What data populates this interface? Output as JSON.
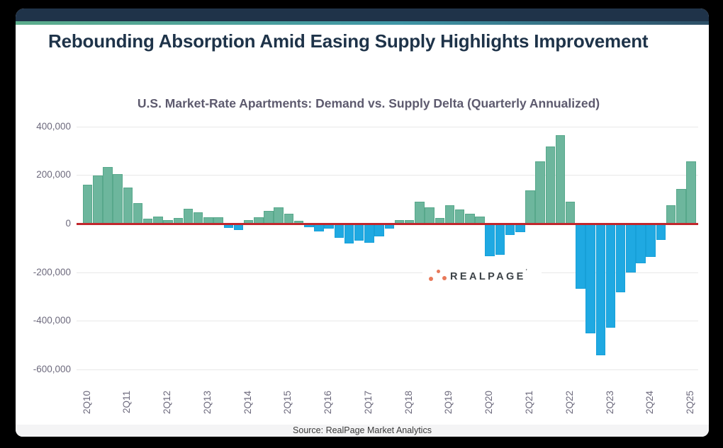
{
  "title": "Rebounding Absorption Amid Easing Supply Highlights Improvement",
  "chart_data": {
    "type": "bar",
    "title": "U.S. Market-Rate Apartments: Demand vs. Supply Delta (Quarterly Annualized)",
    "categories": [
      "2Q10",
      "3Q10",
      "4Q10",
      "1Q11",
      "2Q11",
      "3Q11",
      "4Q11",
      "1Q12",
      "2Q12",
      "3Q12",
      "4Q12",
      "1Q13",
      "2Q13",
      "3Q13",
      "4Q13",
      "1Q14",
      "2Q14",
      "3Q14",
      "4Q14",
      "1Q15",
      "2Q15",
      "3Q15",
      "4Q15",
      "1Q16",
      "2Q16",
      "3Q16",
      "4Q16",
      "1Q17",
      "2Q17",
      "3Q17",
      "4Q17",
      "1Q18",
      "2Q18",
      "3Q18",
      "4Q18",
      "1Q19",
      "2Q19",
      "3Q19",
      "4Q19",
      "1Q20",
      "2Q20",
      "3Q20",
      "4Q20",
      "1Q21",
      "2Q21",
      "3Q21",
      "4Q21",
      "1Q22",
      "2Q22",
      "3Q22",
      "4Q22",
      "1Q23",
      "2Q23",
      "3Q23",
      "4Q23",
      "1Q24",
      "2Q24",
      "3Q24",
      "4Q24",
      "1Q25",
      "2Q25"
    ],
    "values": [
      160000,
      197000,
      233000,
      203000,
      148000,
      86000,
      20000,
      29000,
      16000,
      24000,
      60000,
      47000,
      26000,
      26000,
      -13000,
      -22000,
      15000,
      27000,
      54000,
      68000,
      40000,
      13000,
      -12000,
      -28000,
      -17000,
      -56000,
      -79000,
      -68000,
      -75000,
      -48000,
      -17000,
      15000,
      15000,
      90000,
      68000,
      23000,
      75000,
      58000,
      40000,
      28000,
      -130000,
      -126000,
      -43000,
      -31000,
      138000,
      257000,
      317000,
      363000,
      90000,
      -265000,
      -448000,
      -538000,
      -425000,
      -280000,
      -199000,
      -161000,
      -135000,
      -65000,
      77000,
      144000,
      256000
    ],
    "x_tick_labels": [
      "2Q10",
      "2Q11",
      "2Q12",
      "2Q13",
      "2Q14",
      "2Q15",
      "2Q16",
      "2Q17",
      "2Q18",
      "2Q19",
      "2Q20",
      "2Q21",
      "2Q22",
      "2Q23",
      "2Q24",
      "2Q25"
    ],
    "x_label_every": 4,
    "y_ticks": [
      400000,
      200000,
      -200000,
      -400000,
      -600000
    ],
    "y_tick_labels": [
      "400,000",
      "200,000",
      "0",
      "-200,000",
      "-400,000",
      "-600,000"
    ],
    "y_tick_values": [
      400000,
      200000,
      0,
      -200000,
      -400000,
      -600000
    ],
    "ylim": [
      -600000,
      400000
    ],
    "grid": true,
    "legend": false,
    "positive_color": "#6db69d",
    "positive_border_color": "#57a88b",
    "negative_color": "#1fa9e2",
    "negative_border_color": "#17a0d8",
    "zero_line_color": "#c1272d",
    "gridline_color": "#e8e8e8",
    "tick_label_color": "#6d6a7d"
  },
  "header": {
    "bar_color": "#1f3349",
    "accent_colors": [
      "#5cad8c",
      "#3f96a6",
      "#2d4f67"
    ]
  },
  "watermark": {
    "text": "REALPAGE",
    "mark": "’",
    "dot_color": "#e8795a",
    "text_color": "#3c4247"
  },
  "source": {
    "text": "Source: RealPage Market Analytics"
  }
}
